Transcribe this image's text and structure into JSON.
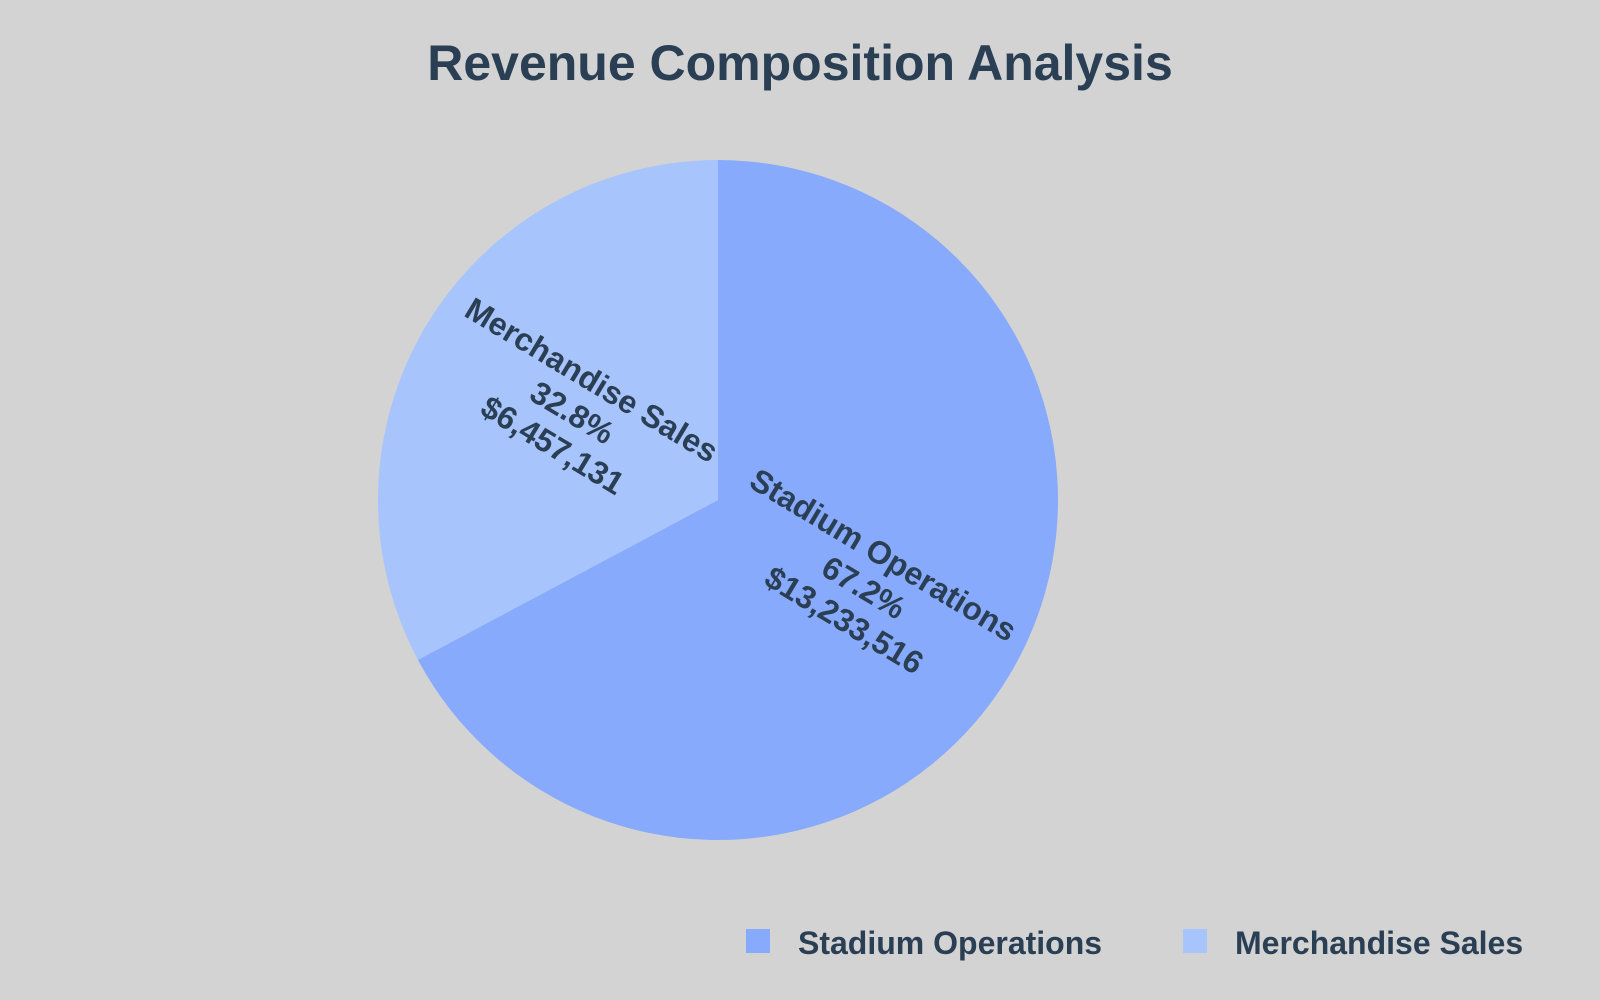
{
  "chart_data": {
    "type": "pie",
    "title": "Revenue Composition Analysis",
    "series": [
      {
        "name": "Stadium Operations",
        "value": 13233516,
        "percent_label": "67.2%",
        "value_label": "$13,233,516",
        "color": "#87aafc"
      },
      {
        "name": "Merchandise Sales",
        "value": 6457131,
        "percent_label": "32.8%",
        "value_label": "$6,457,131",
        "color": "#a8c4fd"
      }
    ],
    "legend_position": "bottom-right",
    "background": "#d3d3d3",
    "text_color": "#2a3f54"
  }
}
